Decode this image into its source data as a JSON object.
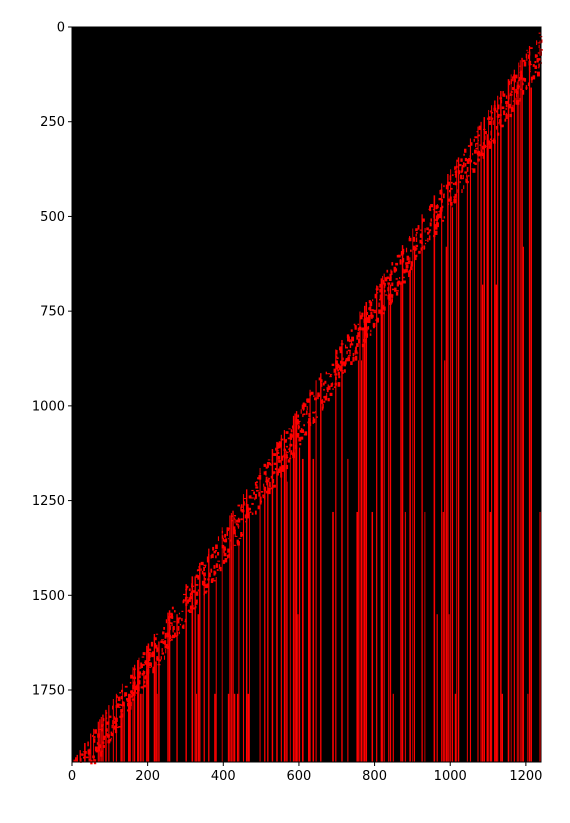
{
  "chart_data": {
    "type": "heatmap",
    "title": "",
    "xlabel": "",
    "ylabel": "",
    "xlim": [
      0,
      1240
    ],
    "ylim": [
      1940,
      0
    ],
    "y_axis_inverted": true,
    "colormap": [
      "#000000",
      "#ff0000"
    ],
    "x_ticks": [
      0,
      200,
      400,
      600,
      800,
      1000,
      1200
    ],
    "y_ticks": [
      0,
      250,
      500,
      750,
      1000,
      1250,
      1500,
      1750
    ],
    "boundary": {
      "description_points": [
        [
          1240,
          0
        ],
        [
          0,
          1940
        ]
      ]
    },
    "block_rows": [
      120,
      170,
      310,
      410,
      580,
      680,
      880,
      1140,
      1200,
      1280,
      1450,
      1550,
      1760
    ],
    "grid": false,
    "legend": "none"
  }
}
